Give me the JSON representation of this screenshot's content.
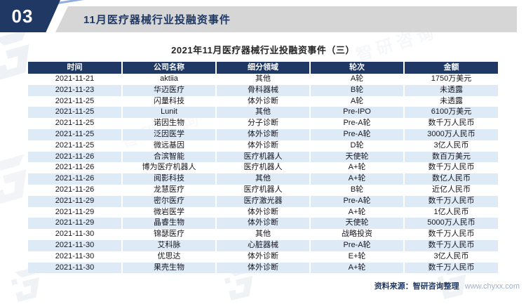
{
  "page": {
    "section_number": "03",
    "banner_title": "11月医疗器械行业投融资事件",
    "table_title": "2021年11月医疗器械行业投融资事件（三）",
    "source_label": "资料来源：智研咨询整理",
    "source_url": "www.chyxx.com",
    "watermark_text": "智研咨询"
  },
  "colors": {
    "navy": "#1F3864",
    "banner_gray": "#D6D6D6",
    "row_alt_blue": "#DEEBF7",
    "header_text": "#FFFFFF",
    "cell_text": "#16161F",
    "url_text": "#9FB1CC"
  },
  "table": {
    "columns": [
      "时间",
      "公司名称",
      "细分领域",
      "轮次",
      "金额"
    ],
    "rows": [
      [
        "2021-11-21",
        "aktiia",
        "其他",
        "A轮",
        "1750万美元"
      ],
      [
        "2021-11-23",
        "华迈医疗",
        "骨科器械",
        "B轮",
        "未透露"
      ],
      [
        "2021-11-25",
        "闪量科技",
        "体外诊断",
        "A轮",
        "未透露"
      ],
      [
        "2021-11-25",
        "Lunit",
        "其他",
        "Pre-IPO",
        "6100万美元"
      ],
      [
        "2021-11-25",
        "诺因生物",
        "分子诊断",
        "Pre-A轮",
        "数千万人民币"
      ],
      [
        "2021-11-25",
        "泛因医学",
        "体外诊断",
        "Pre-A轮",
        "3000万人民币"
      ],
      [
        "2021-11-25",
        "微远基因",
        "体外诊断",
        "D轮",
        "3亿人民币"
      ],
      [
        "2021-11-26",
        "合滨智能",
        "医疗机器人",
        "天使轮",
        "数百万美元"
      ],
      [
        "2021-11-26",
        "博为医疗机器人",
        "医疗机器人",
        "A+轮",
        "数千万人民币"
      ],
      [
        "2021-11-26",
        "阅影科技",
        "其他",
        "A+轮",
        "数亿人民币"
      ],
      [
        "2021-11-26",
        "龙慧医疗",
        "医疗机器人",
        "B轮",
        "近亿人民币"
      ],
      [
        "2021-11-29",
        "密尔医疗",
        "医疗激光器",
        "Pre-A轮",
        "数千万人民币"
      ],
      [
        "2021-11-29",
        "微岩医学",
        "体外诊断",
        "A+轮",
        "1亿人民币"
      ],
      [
        "2021-11-29",
        "晶睿生物",
        "体外诊断",
        "天使轮",
        "5000万人民币"
      ],
      [
        "2021-11-30",
        "锦瑟医疗",
        "其他",
        "战略投资",
        "数千万人民币"
      ],
      [
        "2021-11-30",
        "艾科脉",
        "心脏器械",
        "Pre-A轮",
        "数千万人民币"
      ],
      [
        "2021-11-30",
        "优思达",
        "体外诊断",
        "E+轮",
        "3亿人民币"
      ],
      [
        "2021-11-30",
        "果壳生物",
        "体外诊断",
        "A+轮",
        "数千万人民币"
      ]
    ]
  }
}
